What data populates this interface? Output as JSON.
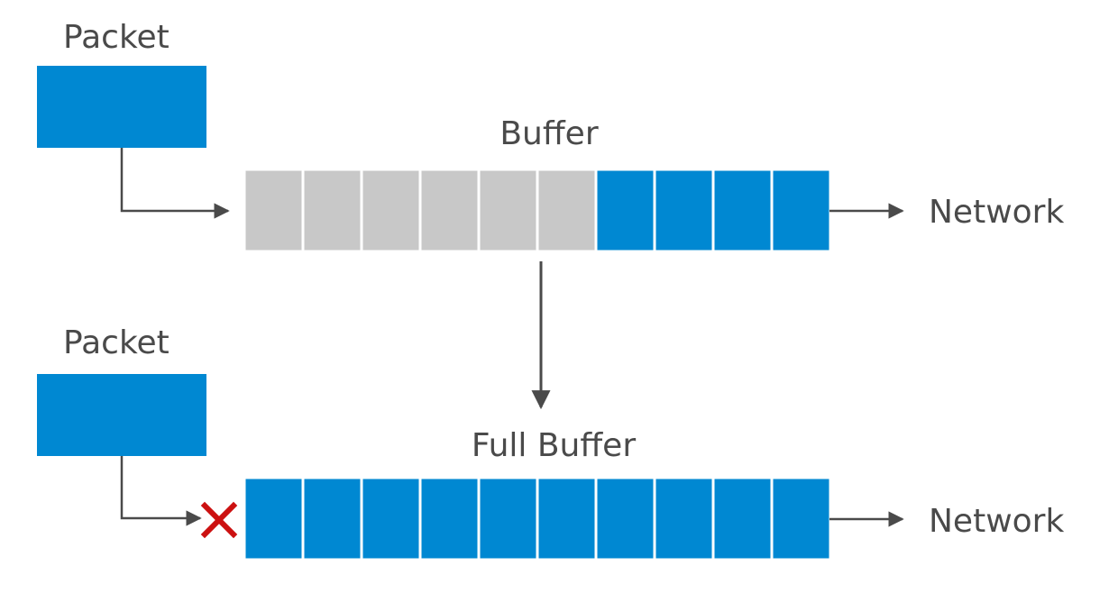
{
  "colors": {
    "background": "#ffffff",
    "packet": "#0088d2",
    "slot_filled": "#0088d2",
    "slot_empty": "#c8c8c8",
    "slot_divider": "#ffffff",
    "arrow": "#4a4a4a",
    "text": "#4a4a4a",
    "drop_mark": "#cc1111"
  },
  "icons": {
    "drop_mark": "x-mark-icon"
  },
  "top": {
    "packet_label": "Packet",
    "buffer_label": "Buffer",
    "destination_label": "Network",
    "slots_total": 10,
    "slots_filled": 4
  },
  "bottom": {
    "packet_label": "Packet",
    "buffer_label": "Full Buffer",
    "destination_label": "Network",
    "slots_total": 10,
    "slots_filled": 10,
    "packet_dropped": true
  }
}
